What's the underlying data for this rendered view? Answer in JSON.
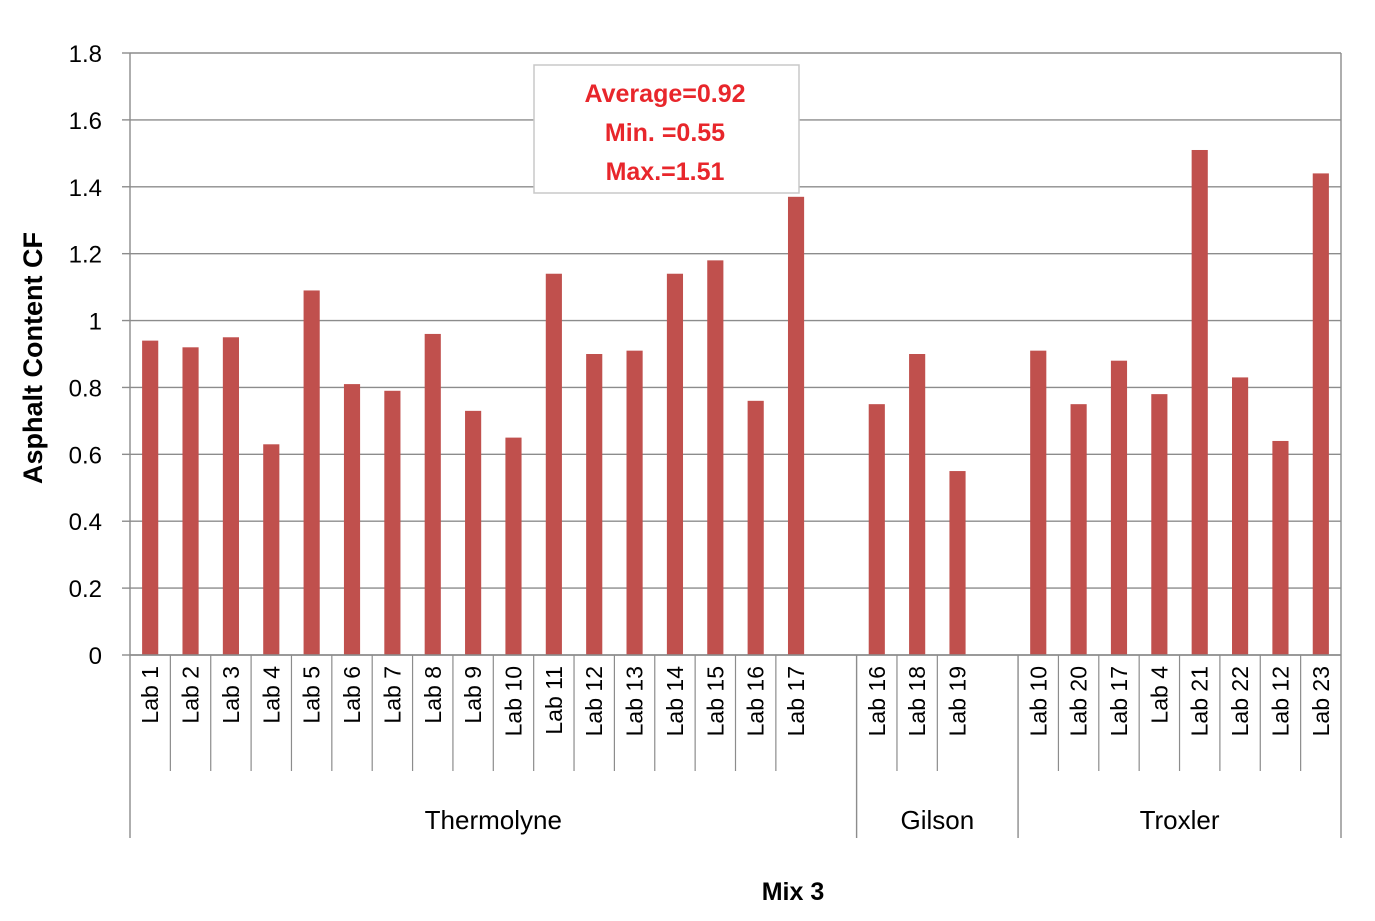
{
  "chart_data": {
    "type": "bar",
    "ylabel": "Asphalt Content CF",
    "xlabel": "Mix 3",
    "ylim": [
      0,
      1.8
    ],
    "yticks": [
      "0",
      "0.2",
      "0.4",
      "0.6",
      "0.8",
      "1",
      "1.2",
      "1.4",
      "1.6",
      "1.8"
    ],
    "grid": true,
    "bar_color": "#c0504d",
    "groups": [
      {
        "name": "Thermolyne",
        "categories": [
          "Lab 1",
          "Lab 2",
          "Lab 3",
          "Lab 4",
          "Lab 5",
          "Lab 6",
          "Lab 7",
          "Lab 8",
          "Lab 9",
          "Lab 10",
          "Lab 11",
          "Lab 12",
          "Lab 13",
          "Lab 14",
          "Lab 15",
          "Lab 16",
          "Lab 17"
        ],
        "values": [
          0.94,
          0.92,
          0.95,
          0.63,
          1.09,
          0.81,
          0.79,
          0.96,
          0.73,
          0.65,
          1.14,
          0.9,
          0.91,
          1.14,
          1.18,
          0.76,
          1.37
        ]
      },
      {
        "name": "Gilson",
        "categories": [
          "Lab 16",
          "Lab 18",
          "Lab 19"
        ],
        "values": [
          0.75,
          0.9,
          0.55
        ]
      },
      {
        "name": "Troxler",
        "categories": [
          "Lab 10",
          "Lab 20",
          "Lab 17",
          "Lab 4",
          "Lab 21",
          "Lab 22",
          "Lab 12",
          "Lab 23"
        ],
        "values": [
          0.91,
          0.75,
          0.88,
          0.78,
          1.51,
          0.83,
          0.64,
          1.44
        ]
      }
    ],
    "annotations": [
      "Average=0.92",
      "Min. =0.55",
      "Max.=1.51"
    ]
  }
}
